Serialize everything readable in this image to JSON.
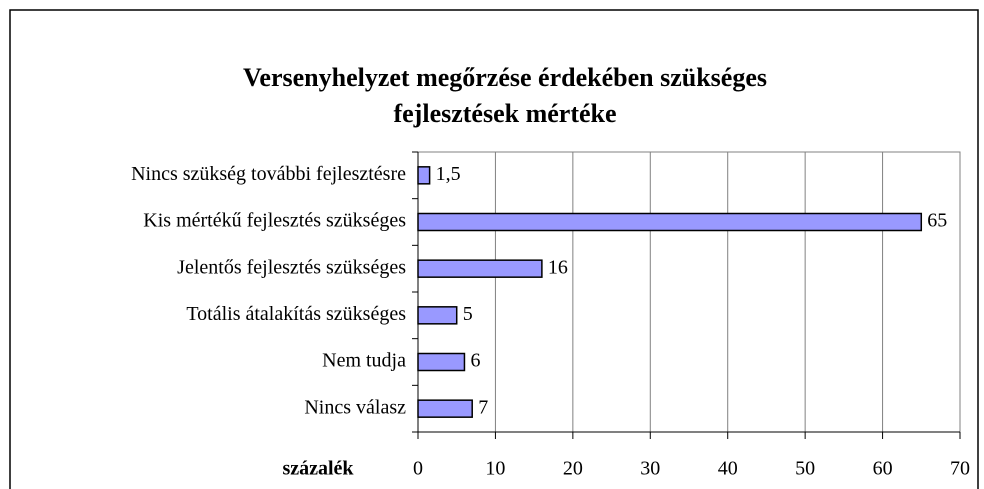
{
  "chart_data": {
    "type": "bar",
    "orientation": "horizontal",
    "title": [
      "Versenyhelyzet megőrzése érdekében szükséges",
      "fejlesztések mértéke"
    ],
    "x_label": "százalék",
    "categories": [
      "Nincs szükség további fejlesztésre",
      "Kis mértékű fejlesztés szükséges",
      "Jelentős fejlesztés szükséges",
      "Totális átalakítás szükséges",
      "Nem tudja",
      "Nincs válasz"
    ],
    "values": [
      1.5,
      65,
      16,
      5,
      6,
      7
    ],
    "value_labels": [
      "1,5",
      "65",
      "16",
      "5",
      "6",
      "7"
    ],
    "color": "#9999ff",
    "xlim": [
      0,
      70
    ],
    "xticks": [
      0,
      10,
      20,
      30,
      40,
      50,
      60,
      70
    ],
    "grid": true
  }
}
